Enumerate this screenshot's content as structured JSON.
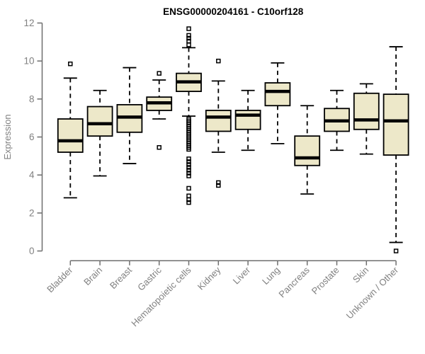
{
  "page_title": "ENSG00000204161 - C10orf128",
  "colors": {
    "background": "#ffffff",
    "box_fill": "#ede8c9",
    "box_border": "#000000",
    "median": "#000000",
    "whisker": "#000000",
    "outlier": "#000000",
    "axis_line": "#6e6e6e",
    "axis_text": "#818181",
    "title_text": "#000000"
  },
  "chart_data": {
    "type": "boxplot",
    "title": "ENSG00000204161 - C10orf128",
    "xlabel": "",
    "ylabel": "Expression",
    "ylim": [
      0,
      12
    ],
    "yticks": [
      0,
      2,
      4,
      6,
      8,
      10,
      12
    ],
    "grid": false,
    "legend": "none",
    "categories": [
      "Bladder",
      "Brain",
      "Breast",
      "Gastric",
      "Hematopoietic cells",
      "Kidney",
      "Liver",
      "Lung",
      "Pancreas",
      "Prostate",
      "Skin",
      "Unknown / Other"
    ],
    "boxes": [
      {
        "category": "Bladder",
        "whislo": 2.8,
        "q1": 5.2,
        "med": 5.8,
        "q3": 6.95,
        "whishi": 9.1,
        "outliers": [
          9.85
        ]
      },
      {
        "category": "Brain",
        "whislo": 3.95,
        "q1": 6.05,
        "med": 6.7,
        "q3": 7.6,
        "whishi": 8.45,
        "outliers": []
      },
      {
        "category": "Breast",
        "whislo": 4.6,
        "q1": 6.25,
        "med": 7.05,
        "q3": 7.7,
        "whishi": 9.65,
        "outliers": []
      },
      {
        "category": "Gastric",
        "whislo": 6.95,
        "q1": 7.4,
        "med": 7.8,
        "q3": 8.1,
        "whishi": 9.0,
        "outliers": [
          9.35,
          5.45
        ]
      },
      {
        "category": "Hematopoietic cells",
        "whislo": 7.1,
        "q1": 8.4,
        "med": 8.9,
        "q3": 9.35,
        "whishi": 10.7,
        "outliers": [
          11.7,
          11.35,
          11.2,
          11.05,
          10.85,
          6.95,
          6.85,
          6.75,
          6.65,
          6.55,
          6.45,
          6.35,
          6.25,
          6.15,
          6.05,
          5.95,
          5.85,
          5.75,
          5.65,
          5.55,
          5.45,
          5.35,
          4.85,
          4.7,
          4.55,
          4.4,
          4.25,
          4.1,
          3.95,
          3.3,
          2.9,
          2.7,
          2.55
        ]
      },
      {
        "category": "Kidney",
        "whislo": 5.2,
        "q1": 6.3,
        "med": 7.05,
        "q3": 7.4,
        "whishi": 8.95,
        "outliers": [
          10.0,
          3.6,
          3.45
        ]
      },
      {
        "category": "Liver",
        "whislo": 5.3,
        "q1": 6.4,
        "med": 7.15,
        "q3": 7.4,
        "whishi": 8.45,
        "outliers": []
      },
      {
        "category": "Lung",
        "whislo": 5.65,
        "q1": 7.65,
        "med": 8.4,
        "q3": 8.85,
        "whishi": 9.9,
        "outliers": []
      },
      {
        "category": "Pancreas",
        "whislo": 3.0,
        "q1": 4.5,
        "med": 4.9,
        "q3": 6.05,
        "whishi": 7.65,
        "outliers": []
      },
      {
        "category": "Prostate",
        "whislo": 5.3,
        "q1": 6.3,
        "med": 6.85,
        "q3": 7.5,
        "whishi": 8.45,
        "outliers": []
      },
      {
        "category": "Skin",
        "whislo": 5.1,
        "q1": 6.4,
        "med": 6.9,
        "q3": 8.3,
        "whishi": 8.8,
        "outliers": []
      },
      {
        "category": "Unknown / Other",
        "whislo": 0.45,
        "q1": 5.05,
        "med": 6.85,
        "q3": 8.25,
        "whishi": 10.75,
        "outliers": [
          0.0
        ]
      }
    ]
  }
}
